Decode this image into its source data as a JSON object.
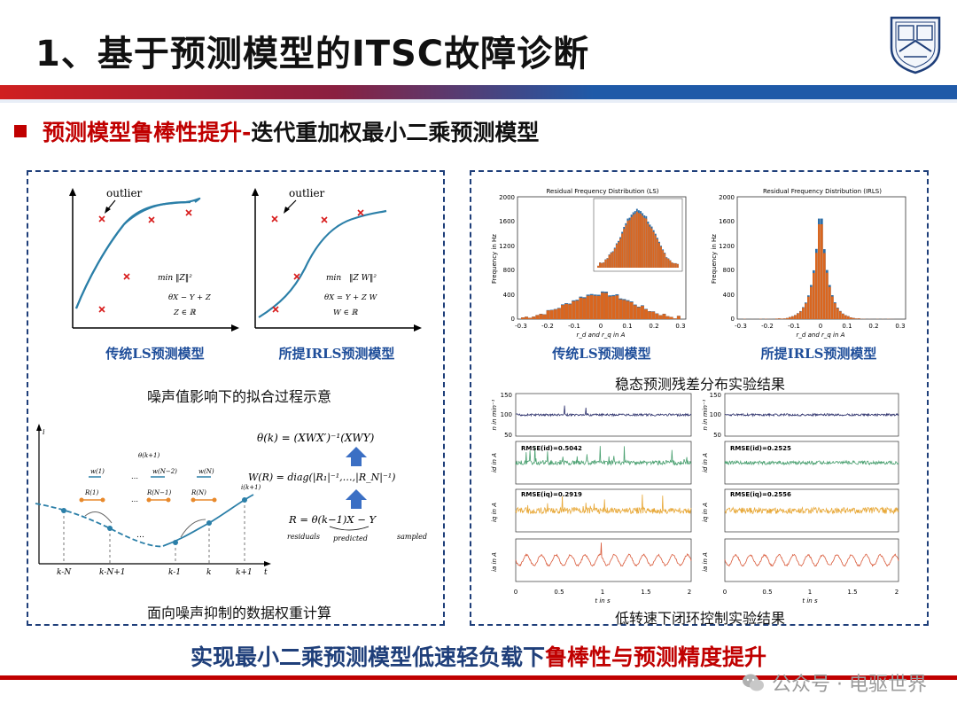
{
  "header": {
    "title": "1、基于预测模型的ITSC故障诊断",
    "subtitle_red": "预测模型鲁棒性提升-",
    "subtitle_black": "迭代重加权最小二乘预测模型"
  },
  "left_panel": {
    "outlier_label": "outlier",
    "ls_label": "传统LS预测模型",
    "irls_label": "所提IRLS预测模型",
    "fit_caption": "噪声值影响下的拟合过程示意",
    "weight_caption": "面向噪声抑制的数据权重计算",
    "axis_t": "t",
    "ticks": [
      "k-N",
      "k-N+1",
      "k-1",
      "k",
      "k+1"
    ],
    "eq_residuals": "residuals",
    "eq_predicted": "predicted",
    "eq_sampled": "sampled"
  },
  "right_panel": {
    "hist_ls_title": "Residual Frequency Distribution (LS)",
    "hist_irls_title": "Residual Frequency Distribution (IRLS)",
    "hist_ylabel": "Frequency in Hz",
    "hist_xlabel": "r_d and r_q in A",
    "hist_yticks": [
      "0",
      "400",
      "800",
      "1200",
      "1600",
      "2000"
    ],
    "hist_xticks": [
      "-0.3",
      "-0.2",
      "-0.1",
      "0",
      "0.1",
      "0.2",
      "0.3"
    ],
    "ls_label": "传统LS预测模型",
    "irls_label": "所提IRLS预测模型",
    "hist_caption": "稳态预测残差分布实验结果",
    "ts_caption": "低转速下闭环控制实验结果",
    "rmse_ls_d": "RMSE(id)=0.5042",
    "rmse_ls_q": "RMSE(iq)=0.2919",
    "rmse_irls_d": "RMSE(id)=0.2525",
    "rmse_irls_q": "RMSE(iq)=0.2556",
    "ylabels": [
      "n in min⁻¹",
      "id in A",
      "iq in A",
      "ia in A"
    ],
    "xlabel": "t in s",
    "xticks": [
      "0",
      "0.5",
      "1",
      "1.5",
      "2"
    ],
    "speed_ticks": [
      "150",
      "100",
      "50"
    ]
  },
  "footer": {
    "conclusion_blue": "实现最小二乘预测模型低速轻负载下",
    "conclusion_red": "鲁棒性与预测精度提升",
    "watermark": "公众号 · 电驱世界"
  },
  "colors": {
    "accent_red": "#c00000",
    "accent_blue": "#1f3f7a",
    "label_blue": "#1f4e9a",
    "curve": "#2b7fa8",
    "hist_blue": "#2f6ea6",
    "hist_orange": "#d9661f"
  },
  "icons": [
    "university-logo-icon",
    "wechat-icon",
    "arrow-up-icon"
  ]
}
